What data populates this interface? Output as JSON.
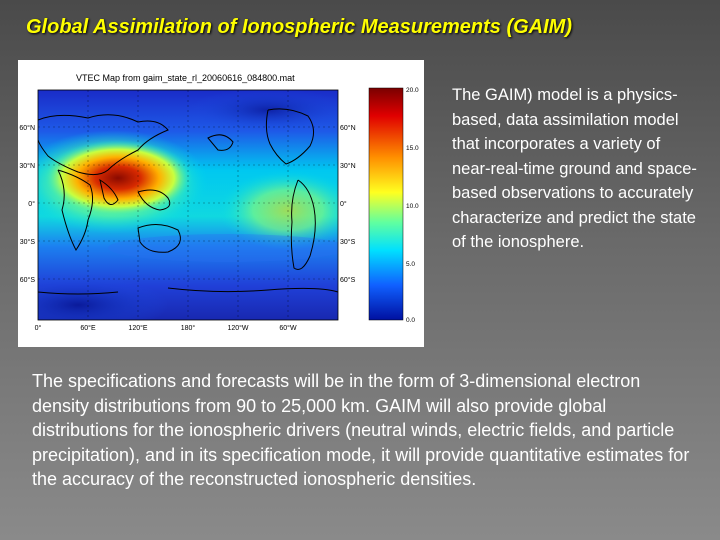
{
  "slide": {
    "title": "Global Assimilation of Ionospheric Measurements (GAIM)",
    "side_paragraph": "The GAIM) model is a physics-based, data assimilation model that incorporates a variety of near-real-time ground and space-based observations to accurately characterize and predict the state of the ionosphere.",
    "bottom_paragraph": "The specifications and forecasts will be in the form of 3-dimensional electron density distributions from 90 to 25,000 km. GAIM will also provide global distributions for the ionospheric drivers (neutral winds, electric fields, and particle precipitation), and in its specification mode, it will provide quantitative estimates for the accuracy of the reconstructed ionospheric densities."
  },
  "figure": {
    "map_title": "VTEC Map from gaim_state_rl_20060616_084800.mat",
    "lat_labels_left": [
      "60°N",
      "30°N",
      "0°",
      "30°S",
      "60°S"
    ],
    "lat_labels_right": [
      "60°N",
      "30°N",
      "0°",
      "30°S",
      "60°S"
    ],
    "lon_labels": [
      "0°",
      "60°E",
      "120°E",
      "180°",
      "120°W",
      "60°W"
    ],
    "colorbar_labels": [
      "20.0",
      "15.0",
      "10.0",
      "5.0",
      "0.0"
    ],
    "colors": {
      "low": "#1a2cc8",
      "mid": "#00d8e8",
      "high": "#e03000"
    }
  }
}
